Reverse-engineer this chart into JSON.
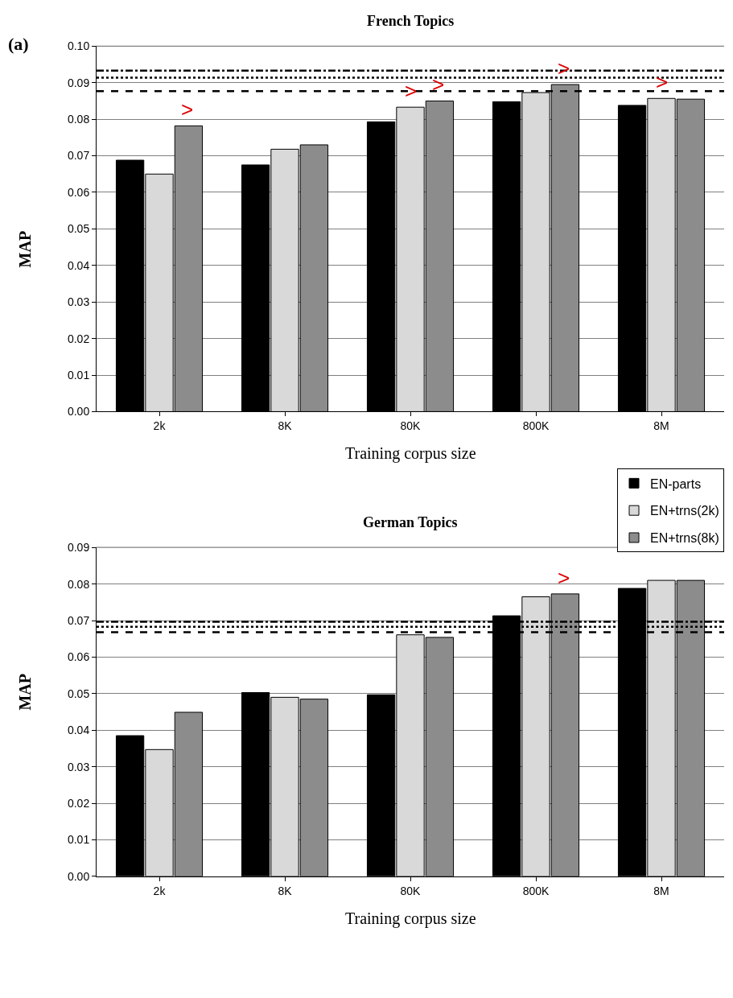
{
  "chart_data": [
    {
      "type": "bar",
      "title": "French Topics",
      "xlabel": "Training corpus size",
      "ylabel": "MAP",
      "categories": [
        "2k",
        "8K",
        "80K",
        "800K",
        "8M"
      ],
      "series": [
        {
          "name": "EN-parts",
          "color": "#000000",
          "values": [
            0.0688,
            0.0675,
            0.0793,
            0.0848,
            0.0838
          ]
        },
        {
          "name": "EN+trns(2k)",
          "color": "#d9d9d9",
          "values": [
            0.065,
            0.0718,
            0.0833,
            0.0873,
            0.0857
          ]
        },
        {
          "name": "EN+trns(8k)",
          "color": "#8c8c8c",
          "values": [
            0.0782,
            0.073,
            0.085,
            0.0895,
            0.0855
          ]
        }
      ],
      "ylim": [
        0,
        0.1
      ],
      "yticks": [
        {
          "value": 0,
          "label": "0.00"
        },
        {
          "value": 0.01,
          "label": "0.01"
        },
        {
          "value": 0.02,
          "label": "0.02"
        },
        {
          "value": 0.03,
          "label": "0.03"
        },
        {
          "value": 0.04,
          "label": "0.04"
        },
        {
          "value": 0.05,
          "label": "0.05"
        },
        {
          "value": 0.06,
          "label": "0.06"
        },
        {
          "value": 0.07,
          "label": "0.07"
        },
        {
          "value": 0.08,
          "label": "0.08"
        },
        {
          "value": 0.09,
          "label": "0.09"
        },
        {
          "value": 0.1,
          "label": "0.10"
        }
      ],
      "grid": "y",
      "legend": "bottom right",
      "ref_lines": [
        {
          "axis": "y",
          "value": 0.0877,
          "color": "#000000",
          "line_style": "dashed"
        },
        {
          "axis": "y",
          "value": 0.0914,
          "color": "#000000",
          "line_style": "dotted"
        },
        {
          "axis": "y",
          "value": 0.0933,
          "color": "#000000",
          "line_style": "dashdot"
        }
      ],
      "annotations": [
        "(a)",
        ">",
        ">",
        ">",
        ">",
        ">"
      ]
    },
    {
      "type": "bar",
      "title": "German Topics",
      "xlabel": "Training corpus size",
      "ylabel": "MAP",
      "categories": [
        "2k",
        "8K",
        "80K",
        "800K",
        "8M"
      ],
      "series": [
        {
          "color": "#000000",
          "values": [
            0.0385,
            0.0503,
            0.0497,
            0.0713,
            0.0788
          ]
        },
        {
          "color": "#d9d9d9",
          "values": [
            0.0347,
            0.049,
            0.0661,
            0.0765,
            0.081
          ]
        },
        {
          "color": "#8c8c8c",
          "values": [
            0.0449,
            0.0485,
            0.0654,
            0.0773,
            0.081
          ]
        }
      ],
      "ylim": [
        0,
        0.09
      ],
      "yticks": [
        {
          "value": 0,
          "label": "0.00"
        },
        {
          "value": 0.01,
          "label": "0.01"
        },
        {
          "value": 0.02,
          "label": "0.02"
        },
        {
          "value": 0.03,
          "label": "0.03"
        },
        {
          "value": 0.04,
          "label": "0.04"
        },
        {
          "value": 0.05,
          "label": "0.05"
        },
        {
          "value": 0.06,
          "label": "0.06"
        },
        {
          "value": 0.07,
          "label": "0.07"
        },
        {
          "value": 0.08,
          "label": "0.08"
        },
        {
          "value": 0.09,
          "label": "0.09"
        }
      ],
      "grid": "y",
      "ref_lines": [
        {
          "axis": "y",
          "value": 0.0668,
          "color": "#000000",
          "line_style": "dashed"
        },
        {
          "axis": "y",
          "value": 0.0683,
          "color": "#000000",
          "line_style": "dotted"
        },
        {
          "axis": "y",
          "value": 0.0697,
          "color": "#000000",
          "line_style": "dashdot"
        }
      ],
      "annotations": [
        ">"
      ]
    }
  ]
}
